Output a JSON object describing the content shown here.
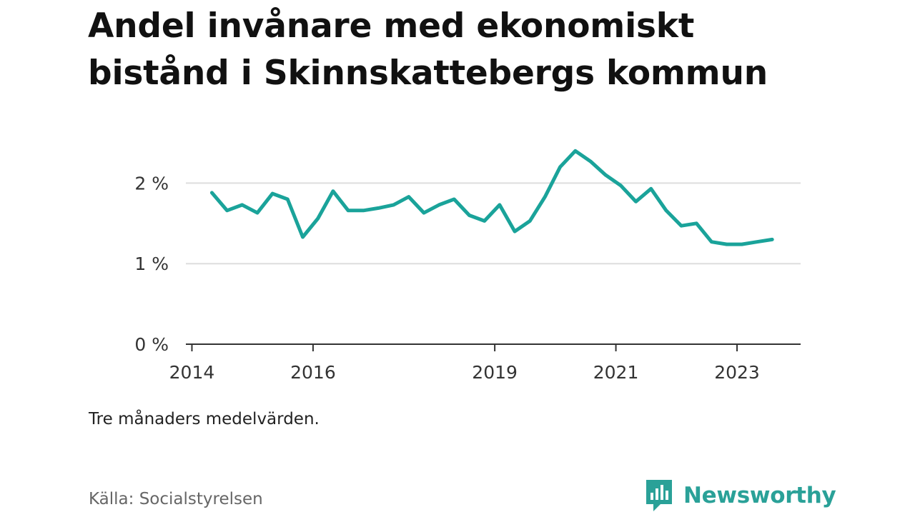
{
  "header": {
    "title": "Andel invånare med ekonomiskt bistånd i Skinnskattebergs kommun"
  },
  "chart_data": {
    "type": "line",
    "title": "Andel invånare med ekonomiskt bistånd i Skinnskattebergs kommun",
    "xlabel": "",
    "ylabel": "",
    "y_ticks": [
      0,
      1,
      2
    ],
    "y_tick_labels": [
      "0 %",
      "1 %",
      "2 %"
    ],
    "ylim": [
      0,
      2.5
    ],
    "x_ticks": [
      2014,
      2016,
      2019,
      2021,
      2023
    ],
    "x_tick_labels": [
      "2014",
      "2016",
      "2019",
      "2021",
      "2023"
    ],
    "xlim": [
      2013.9,
      2024.05
    ],
    "grid": true,
    "line_color": "#1aa39a",
    "series": [
      {
        "x": [
          2014.33,
          2014.58,
          2014.83,
          2015.08,
          2015.33,
          2015.58,
          2015.83,
          2016.08,
          2016.33,
          2016.58,
          2016.83,
          2017.08,
          2017.33,
          2017.58,
          2017.83,
          2018.08,
          2018.33,
          2018.58,
          2018.83,
          2019.08,
          2019.33,
          2019.58,
          2019.83,
          2020.08,
          2020.33,
          2020.58,
          2020.83,
          2021.08,
          2021.33,
          2021.58,
          2021.83,
          2022.08,
          2022.33,
          2022.58,
          2022.83,
          2023.08,
          2023.33,
          2023.58
        ],
        "values": [
          1.88,
          1.66,
          1.73,
          1.63,
          1.87,
          1.8,
          1.33,
          1.56,
          1.9,
          1.66,
          1.66,
          1.69,
          1.73,
          1.83,
          1.63,
          1.73,
          1.8,
          1.6,
          1.53,
          1.73,
          1.4,
          1.53,
          1.83,
          2.2,
          2.4,
          2.27,
          2.1,
          1.97,
          1.77,
          1.93,
          1.66,
          1.47,
          1.5,
          1.27,
          1.24,
          1.24,
          1.27,
          1.3
        ]
      }
    ]
  },
  "footer": {
    "note": "Tre månaders medelvärden.",
    "source": "Källa: Socialstyrelsen",
    "brand": "Newsworthy",
    "brand_color": "#2aa198",
    "brand_icon": "bar-chart-speech-bubble-icon"
  }
}
